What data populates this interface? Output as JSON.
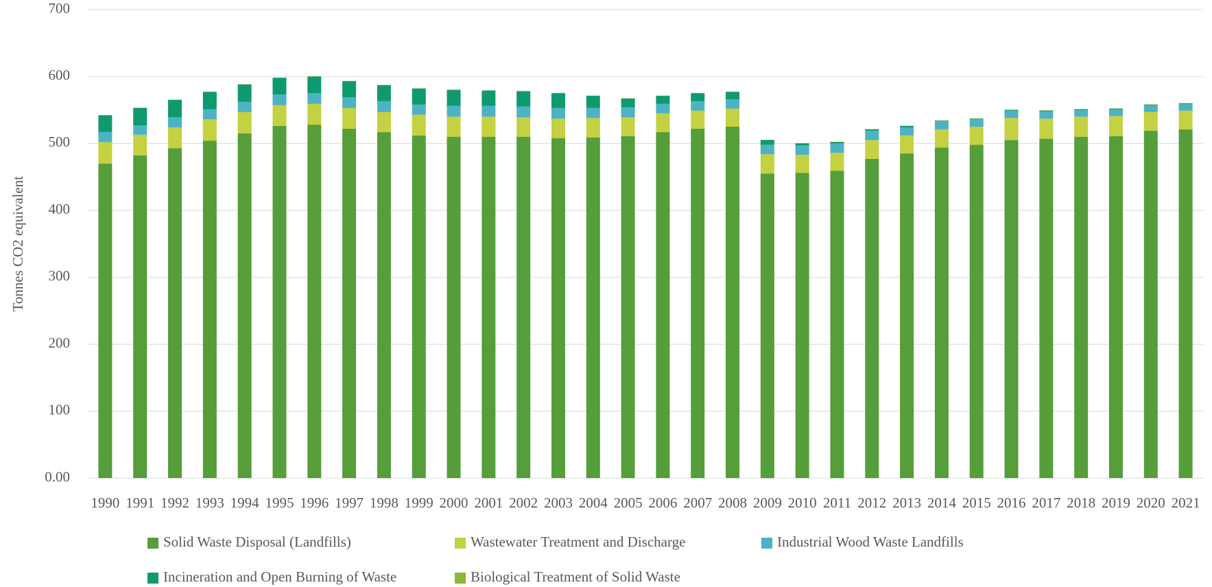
{
  "chart_data": {
    "type": "stacked-bar",
    "y_label": "Tonnes CO2 equivalent",
    "categories": [
      "1990",
      "1991",
      "1992",
      "1993",
      "1994",
      "1995",
      "1996",
      "1997",
      "1998",
      "1999",
      "2000",
      "2001",
      "2002",
      "2003",
      "2004",
      "2005",
      "2006",
      "2007",
      "2008",
      "2009",
      "2010",
      "2011",
      "2012",
      "2013",
      "2014",
      "2015",
      "2016",
      "2017",
      "2018",
      "2019",
      "2020",
      "2021"
    ],
    "series": [
      {
        "name": "Solid Waste Disposal (Landfills)",
        "color": "#559e3a",
        "values": [
          470,
          482,
          493,
          504,
          515,
          526,
          528,
          522,
          517,
          512,
          510,
          510,
          510,
          508,
          509,
          511,
          517,
          522,
          525,
          455,
          456,
          459,
          477,
          485,
          494,
          498,
          505,
          507,
          510,
          511,
          519,
          521
        ]
      },
      {
        "name": "Wastewater Treatment and Discharge",
        "color": "#c3d142",
        "values": [
          32,
          31,
          31,
          32,
          32,
          31,
          31,
          31,
          30,
          31,
          30,
          30,
          29,
          29,
          29,
          28,
          28,
          27,
          27,
          29,
          27,
          27,
          28,
          27,
          27,
          27,
          33,
          30,
          30,
          30,
          28,
          28
        ]
      },
      {
        "name": "Industrial Wood Waste Landfills",
        "color": "#4db3c4",
        "values": [
          15,
          14,
          15,
          15,
          15,
          16,
          16,
          16,
          16,
          15,
          16,
          16,
          16,
          16,
          15,
          15,
          14,
          14,
          14,
          14,
          14,
          14,
          14,
          12,
          12,
          11,
          11,
          11,
          10,
          10,
          10,
          10
        ]
      },
      {
        "name": "Incineration and Open Burning of Waste",
        "color": "#0e9a6e",
        "values": [
          25,
          26,
          26,
          26,
          26,
          25,
          25,
          24,
          24,
          24,
          24,
          23,
          23,
          22,
          18,
          13,
          12,
          12,
          11,
          7,
          3,
          2,
          2,
          2,
          1,
          1,
          1,
          1,
          1,
          1,
          1,
          1
        ]
      },
      {
        "name": "Biological Treatment of Solid Waste",
        "color": "#8ab83a",
        "values": [
          0.5,
          0.5,
          0.5,
          0.5,
          0.5,
          0.5,
          0.5,
          0.5,
          0.5,
          0.5,
          0.5,
          0.5,
          0.5,
          0.5,
          0.5,
          0.5,
          0.5,
          0.5,
          0.5,
          0.5,
          0.5,
          0.5,
          0.5,
          0.5,
          0.5,
          0.5,
          0.5,
          0.5,
          0.5,
          0.5,
          0.5,
          0.5
        ]
      }
    ],
    "ylim": [
      0,
      700
    ],
    "yticks": [
      {
        "value": 0,
        "label": "0.00"
      },
      100,
      200,
      300,
      400,
      500,
      600,
      700
    ],
    "grid": true,
    "legend": "bottom"
  }
}
